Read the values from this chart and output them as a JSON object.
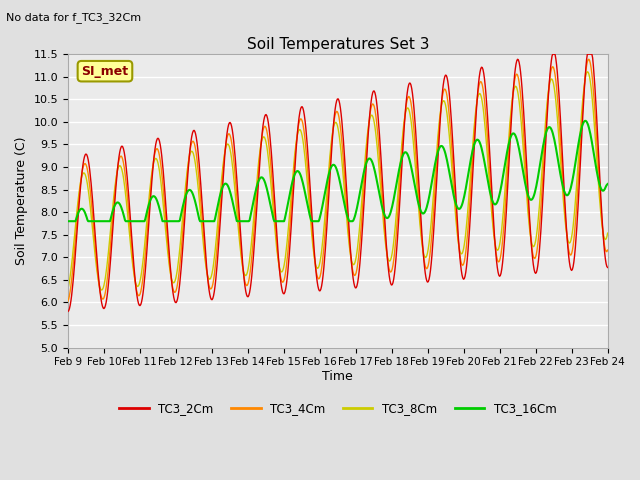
{
  "title": "Soil Temperatures Set 3",
  "subtitle": "No data for f_TC3_32Cm",
  "xlabel": "Time",
  "ylabel": "Soil Temperature (C)",
  "ylim": [
    5.0,
    11.5
  ],
  "yticks": [
    5.0,
    5.5,
    6.0,
    6.5,
    7.0,
    7.5,
    8.0,
    8.5,
    9.0,
    9.5,
    10.0,
    10.5,
    11.0,
    11.5
  ],
  "xtick_labels": [
    "Feb 9",
    "Feb 10",
    "Feb 11",
    "Feb 12",
    "Feb 13",
    "Feb 14",
    "Feb 15",
    "Feb 16",
    "Feb 17",
    "Feb 18",
    "Feb 19",
    "Feb 20",
    "Feb 21",
    "Feb 22",
    "Feb 23",
    "Feb 24"
  ],
  "colors": {
    "TC3_2Cm": "#DD0000",
    "TC3_4Cm": "#FF8800",
    "TC3_8Cm": "#CCCC00",
    "TC3_16Cm": "#00CC00"
  },
  "legend_label": "SI_met",
  "background_color": "#E0E0E0",
  "plot_bg_color": "#EBEBEB",
  "grid_color": "#FFFFFF"
}
